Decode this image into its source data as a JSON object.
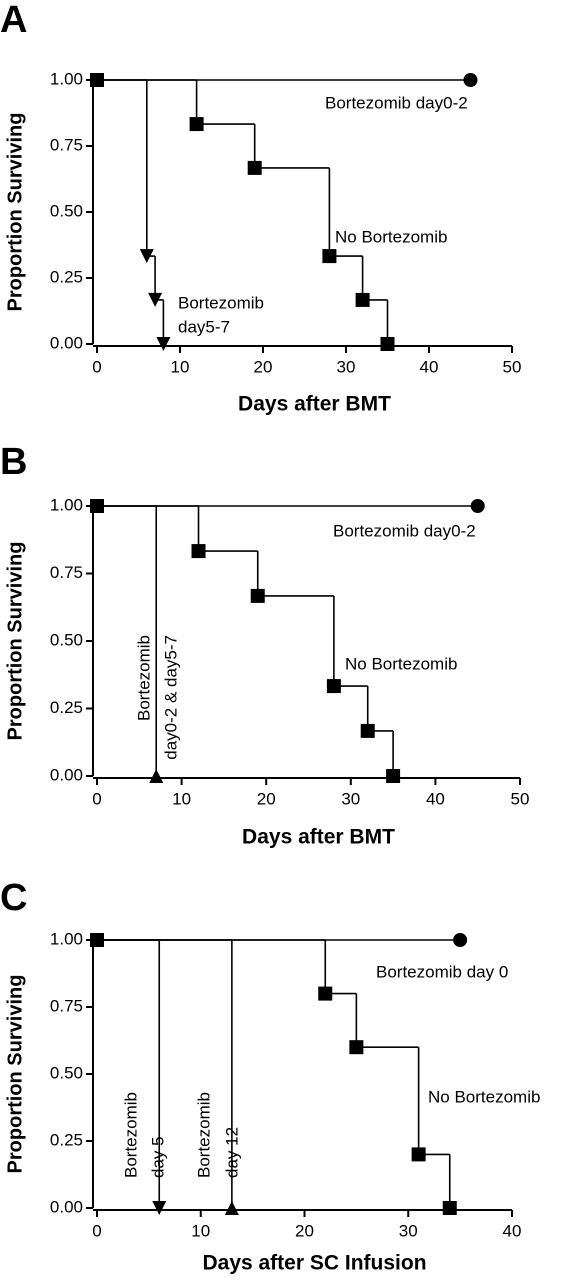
{
  "chart_data": [
    {
      "type": "step",
      "panel_label": "A",
      "xlabel": "Days after BMT",
      "ylabel": "Proportion Surviving",
      "xlim": [
        0,
        50
      ],
      "ylim": [
        0,
        1
      ],
      "xticks": [
        0,
        10,
        20,
        30,
        40,
        50
      ],
      "yticks": [
        {
          "value": 0,
          "label": "0.00"
        },
        {
          "value": 0.25,
          "label": "0.25"
        },
        {
          "value": 0.5,
          "label": "0.50"
        },
        {
          "value": 0.75,
          "label": "0.75"
        },
        {
          "value": 1,
          "label": "1.00"
        }
      ],
      "series": [
        {
          "label": [
            "Bortezomib day0-2"
          ],
          "color": "#000000",
          "marker": "circle",
          "x": [
            0,
            45
          ],
          "values": [
            1,
            1
          ]
        },
        {
          "label": [
            "Bortezomib",
            "day5-7"
          ],
          "color": "#000000",
          "marker": "triangle-down",
          "x": [
            0,
            6,
            7,
            8
          ],
          "values": [
            1,
            0.333,
            0.167,
            0
          ]
        },
        {
          "label": [
            "No Bortezomib"
          ],
          "color": "#000000",
          "marker": "square",
          "x": [
            0,
            12,
            19,
            28,
            32,
            35
          ],
          "values": [
            1,
            0.833,
            0.667,
            0.333,
            0.167,
            0
          ]
        }
      ]
    },
    {
      "type": "step",
      "panel_label": "B",
      "xlabel": "Days after BMT",
      "ylabel": "Proportion Surviving",
      "xlim": [
        0,
        50
      ],
      "ylim": [
        0,
        1
      ],
      "xticks": [
        0,
        10,
        20,
        30,
        40,
        50
      ],
      "yticks": [
        {
          "value": 0,
          "label": "0.00"
        },
        {
          "value": 0.25,
          "label": "0.25"
        },
        {
          "value": 0.5,
          "label": "0.50"
        },
        {
          "value": 0.75,
          "label": "0.75"
        },
        {
          "value": 1,
          "label": "1.00"
        }
      ],
      "series": [
        {
          "label": [
            "Bortezomib day0-2"
          ],
          "color": "#000000",
          "marker": "circle",
          "x": [
            0,
            45
          ],
          "values": [
            1,
            1
          ]
        },
        {
          "label": [
            "Bortezomib",
            "day0-2 & day5-7"
          ],
          "color": "#000000",
          "marker": "triangle-up",
          "x": [
            0,
            7
          ],
          "values": [
            1,
            0
          ]
        },
        {
          "label": [
            "No Bortezomib"
          ],
          "color": "#000000",
          "marker": "square",
          "x": [
            0,
            12,
            19,
            28,
            32,
            35
          ],
          "values": [
            1,
            0.833,
            0.667,
            0.333,
            0.167,
            0
          ]
        }
      ]
    },
    {
      "type": "step",
      "panel_label": "C",
      "xlabel": "Days after SC Infusion",
      "ylabel": "Proportion Surviving",
      "xlim": [
        0,
        40
      ],
      "ylim": [
        0,
        1
      ],
      "xticks": [
        0,
        10,
        20,
        30,
        40
      ],
      "yticks": [
        {
          "value": 0,
          "label": "0.00"
        },
        {
          "value": 0.25,
          "label": "0.25"
        },
        {
          "value": 0.5,
          "label": "0.50"
        },
        {
          "value": 0.75,
          "label": "0.75"
        },
        {
          "value": 1,
          "label": "1.00"
        }
      ],
      "series": [
        {
          "label": [
            "Bortezomib day 0"
          ],
          "color": "#000000",
          "marker": "circle",
          "x": [
            0,
            35
          ],
          "values": [
            1,
            1
          ]
        },
        {
          "label": [
            "Bortezomib",
            "day 5"
          ],
          "color": "#000000",
          "marker": "triangle-down",
          "x": [
            0,
            6
          ],
          "values": [
            1,
            0
          ]
        },
        {
          "label": [
            "Bortezomib",
            "day 12"
          ],
          "color": "#000000",
          "marker": "triangle-up",
          "x": [
            0,
            13
          ],
          "values": [
            1,
            0
          ]
        },
        {
          "label": [
            "No Bortezomib"
          ],
          "color": "#000000",
          "marker": "square",
          "x": [
            0,
            22,
            25,
            31,
            34
          ],
          "values": [
            1,
            0.8,
            0.6,
            0.2,
            0
          ]
        }
      ]
    }
  ]
}
